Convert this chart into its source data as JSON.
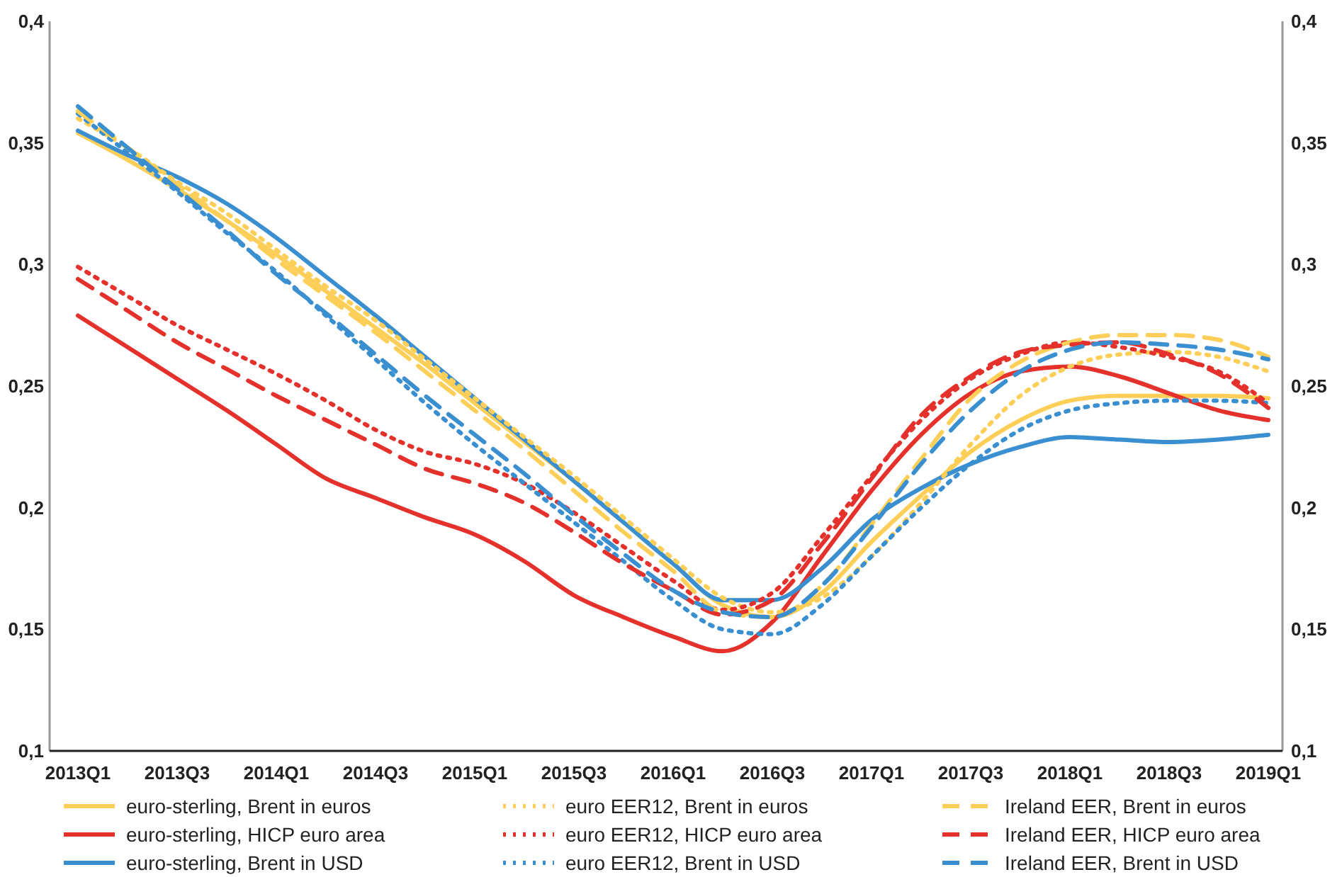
{
  "chart_data": {
    "type": "line",
    "categories": [
      "2013Q1",
      null,
      "2013Q3",
      null,
      "2014Q1",
      null,
      "2014Q3",
      null,
      "2015Q1",
      null,
      "2015Q3",
      null,
      "2016Q1",
      null,
      "2016Q3",
      null,
      "2017Q1",
      null,
      "2017Q3",
      null,
      "2018Q1",
      null,
      "2018Q3",
      null,
      "2019Q1"
    ],
    "ylim": [
      0.1,
      0.4
    ],
    "yticks": [
      {
        "value": 0.1,
        "label": "0,1"
      },
      {
        "value": 0.15,
        "label": "0,15"
      },
      {
        "value": 0.2,
        "label": "0,2"
      },
      {
        "value": 0.25,
        "label": "0,25"
      },
      {
        "value": 0.3,
        "label": "0,3"
      },
      {
        "value": 0.35,
        "label": "0,35"
      },
      {
        "value": 0.4,
        "label": "0,4"
      }
    ],
    "y2lim": [
      0.1,
      0.4
    ],
    "y2ticks": [
      {
        "value": 0.1,
        "label": "0,1"
      },
      {
        "value": 0.15,
        "label": "0,15"
      },
      {
        "value": 0.2,
        "label": "0,2"
      },
      {
        "value": 0.25,
        "label": "0,25"
      },
      {
        "value": 0.3,
        "label": "0,3"
      },
      {
        "value": 0.35,
        "label": "0,35"
      },
      {
        "value": 0.4,
        "label": "0,4"
      }
    ],
    "grid": false,
    "legend": "bottom",
    "marker": "none",
    "series": [
      {
        "name": "euro-sterling, Brent in euros",
        "color": "#fdcf58",
        "line_style": "solid",
        "values": [
          0.354,
          0.343,
          0.331,
          0.318,
          0.304,
          0.289,
          0.274,
          0.259,
          0.243,
          0.227,
          0.211,
          0.194,
          0.177,
          0.16,
          0.155,
          0.165,
          0.186,
          0.205,
          0.223,
          0.236,
          0.244,
          0.246,
          0.246,
          0.246,
          0.245
        ]
      },
      {
        "name": "euro-sterling, HICP euro area",
        "color": "#e4312b",
        "line_style": "solid",
        "values": [
          0.279,
          0.266,
          0.253,
          0.24,
          0.226,
          0.212,
          0.204,
          0.196,
          0.189,
          0.178,
          0.164,
          0.155,
          0.147,
          0.141,
          0.153,
          0.18,
          0.207,
          0.23,
          0.247,
          0.256,
          0.258,
          0.254,
          0.247,
          0.24,
          0.236
        ]
      },
      {
        "name": "euro-sterling, Brent in USD",
        "color": "#3a8fd0",
        "line_style": "solid",
        "values": [
          0.355,
          0.345,
          0.336,
          0.325,
          0.311,
          0.295,
          0.279,
          0.262,
          0.245,
          0.228,
          0.211,
          0.194,
          0.177,
          0.162,
          0.162,
          0.175,
          0.195,
          0.208,
          0.218,
          0.225,
          0.229,
          0.228,
          0.227,
          0.228,
          0.23
        ]
      },
      {
        "name": "euro EER12, Brent in euros",
        "color": "#fdcf58",
        "line_style": "dotted",
        "values": [
          0.36,
          0.348,
          0.334,
          0.321,
          0.306,
          0.291,
          0.277,
          0.261,
          0.245,
          0.229,
          0.213,
          0.196,
          0.179,
          0.163,
          0.157,
          0.163,
          0.18,
          0.202,
          0.226,
          0.246,
          0.258,
          0.263,
          0.264,
          0.262,
          0.256
        ]
      },
      {
        "name": "euro EER12, HICP euro area",
        "color": "#e4312b",
        "line_style": "dotted",
        "values": [
          0.299,
          0.287,
          0.275,
          0.265,
          0.255,
          0.244,
          0.232,
          0.223,
          0.218,
          0.21,
          0.198,
          0.184,
          0.17,
          0.158,
          0.165,
          0.188,
          0.213,
          0.236,
          0.253,
          0.263,
          0.268,
          0.266,
          0.262,
          0.256,
          0.243
        ]
      },
      {
        "name": "euro EER12, Brent in USD",
        "color": "#3a8fd0",
        "line_style": "dotted",
        "values": [
          0.362,
          0.346,
          0.33,
          0.313,
          0.297,
          0.279,
          0.261,
          0.243,
          0.226,
          0.21,
          0.194,
          0.178,
          0.162,
          0.15,
          0.148,
          0.16,
          0.18,
          0.2,
          0.218,
          0.232,
          0.24,
          0.243,
          0.244,
          0.244,
          0.243
        ]
      },
      {
        "name": "Ireland EER, Brent in euros",
        "color": "#fdcf58",
        "line_style": "dashed",
        "values": [
          0.363,
          0.348,
          0.333,
          0.318,
          0.302,
          0.287,
          0.272,
          0.256,
          0.24,
          0.224,
          0.207,
          0.19,
          0.174,
          0.157,
          0.155,
          0.168,
          0.193,
          0.22,
          0.245,
          0.26,
          0.268,
          0.271,
          0.271,
          0.269,
          0.262
        ]
      },
      {
        "name": "Ireland EER, HICP euro area",
        "color": "#e4312b",
        "line_style": "dashed",
        "values": [
          0.294,
          0.281,
          0.268,
          0.257,
          0.246,
          0.236,
          0.226,
          0.216,
          0.21,
          0.202,
          0.19,
          0.177,
          0.166,
          0.156,
          0.162,
          0.185,
          0.212,
          0.238,
          0.254,
          0.264,
          0.267,
          0.268,
          0.263,
          0.255,
          0.241
        ]
      },
      {
        "name": "Ireland EER, Brent in USD",
        "color": "#3a8fd0",
        "line_style": "dashed",
        "values": [
          0.365,
          0.348,
          0.331,
          0.314,
          0.296,
          0.28,
          0.263,
          0.246,
          0.23,
          0.214,
          0.197,
          0.181,
          0.166,
          0.157,
          0.155,
          0.168,
          0.192,
          0.218,
          0.24,
          0.256,
          0.265,
          0.268,
          0.267,
          0.265,
          0.261
        ]
      }
    ]
  }
}
